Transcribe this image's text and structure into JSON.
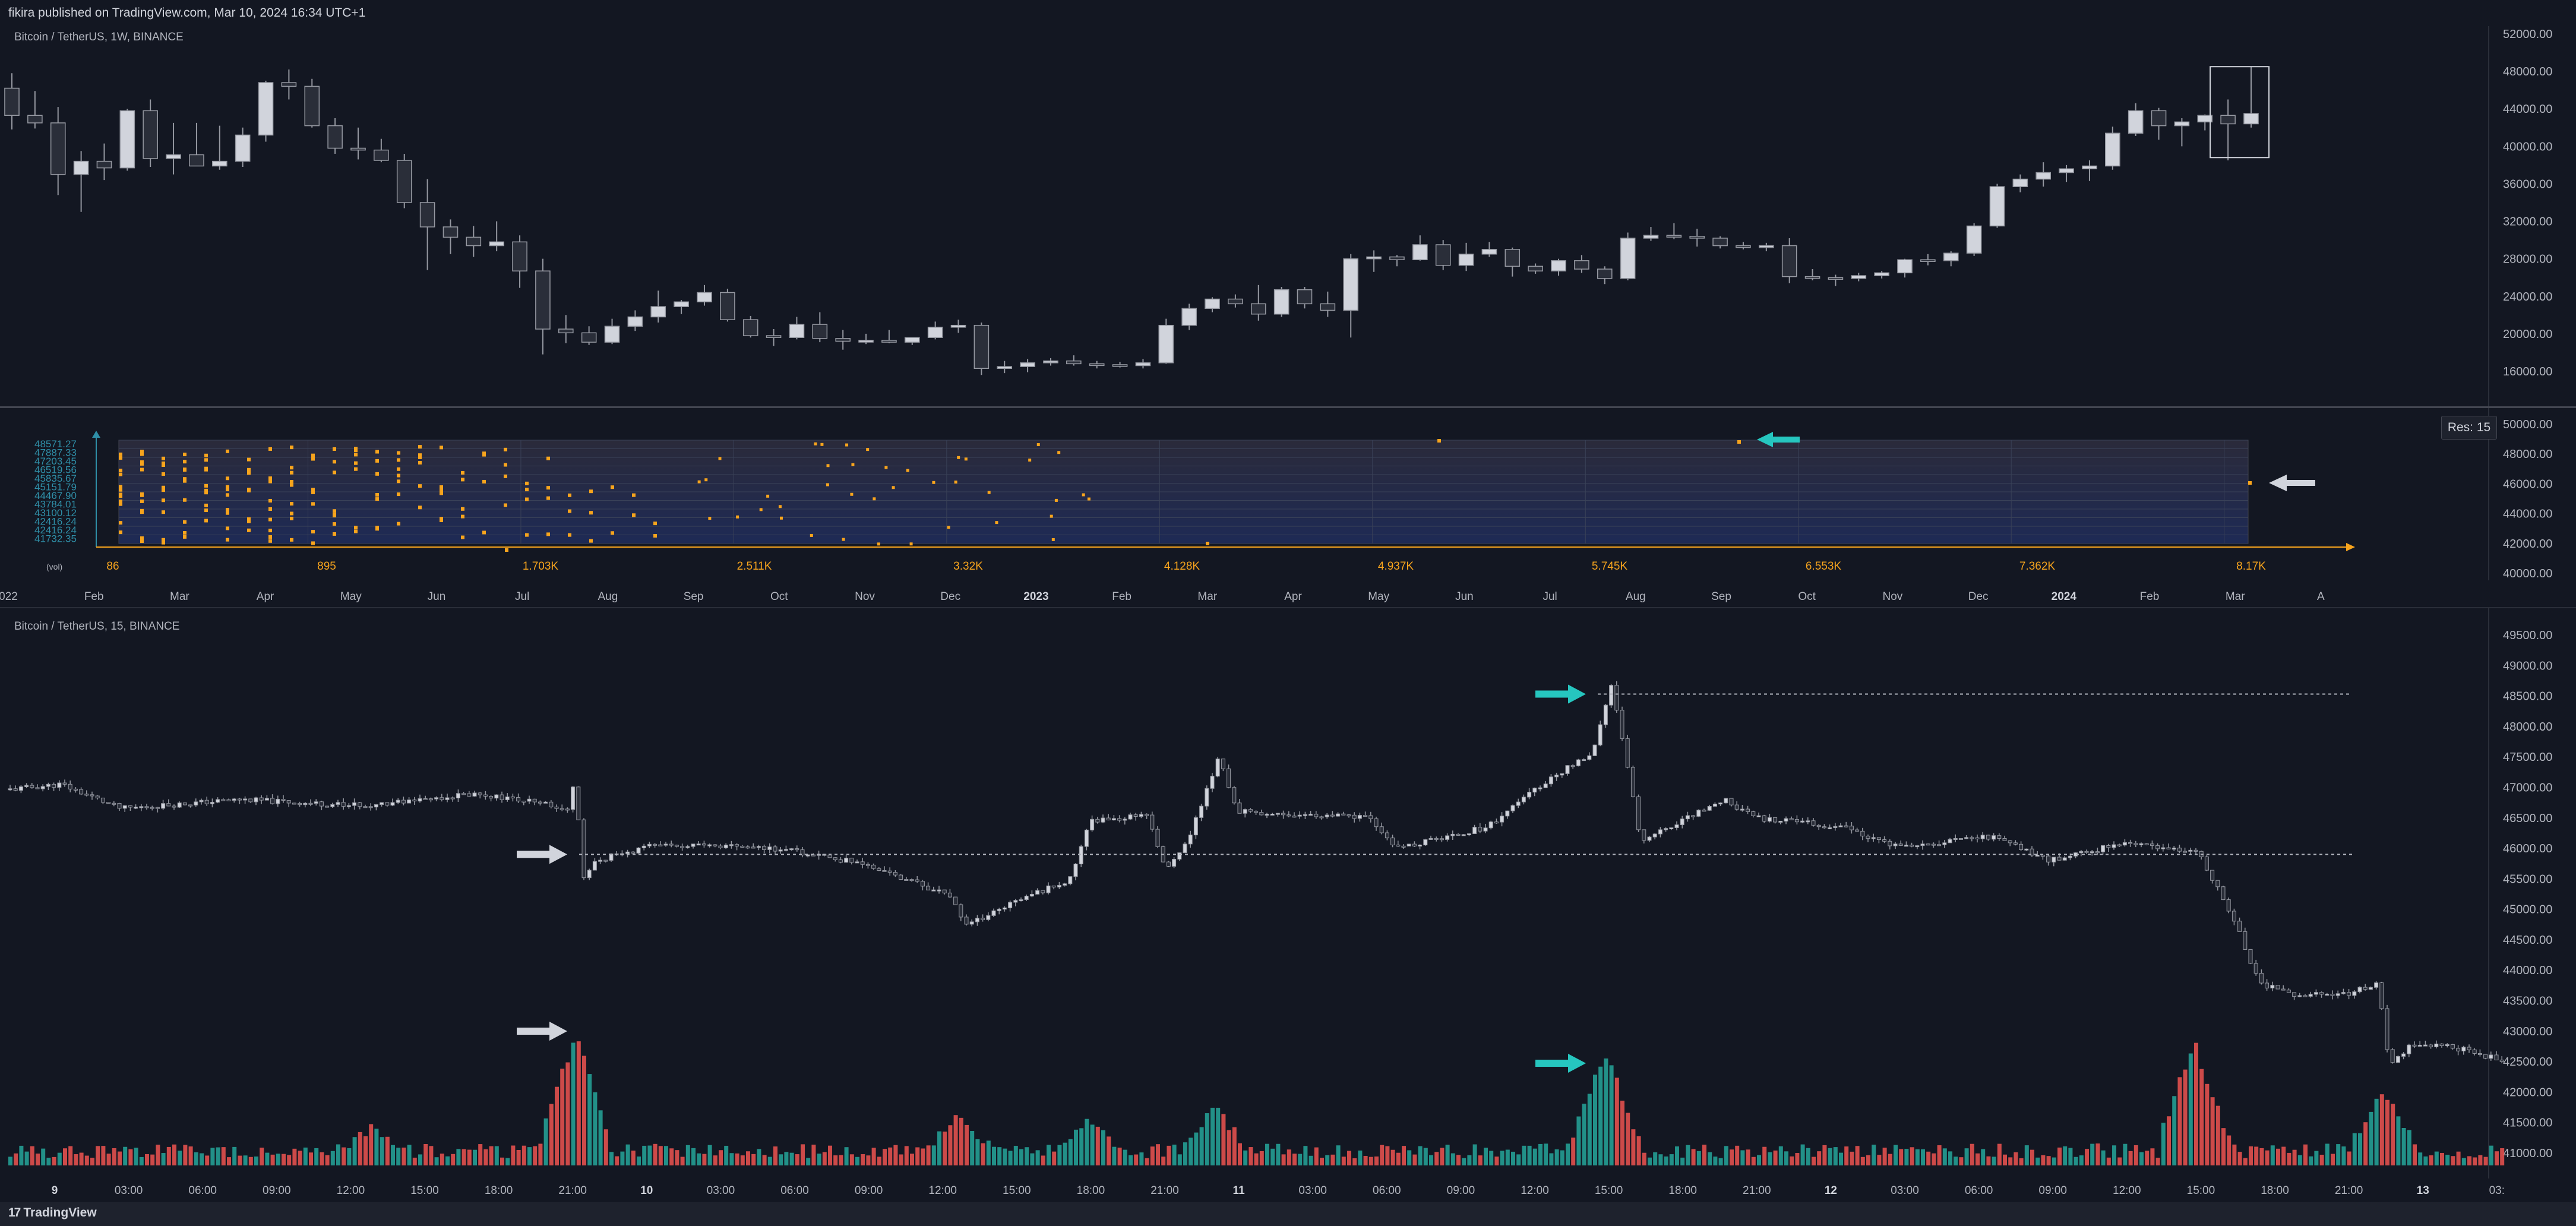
{
  "header": {
    "publish_text": "fikira published on TradingView.com, Mar 10, 2024 16:34 UTC+1"
  },
  "top_pane": {
    "title": "Bitcoin / TetherUS, 1W, BINANCE",
    "price_axis": [
      "52000.00",
      "48000.00",
      "44000.00",
      "40000.00",
      "36000.00",
      "32000.00",
      "28000.00",
      "24000.00",
      "20000.00",
      "16000.00"
    ],
    "candles": [
      [
        46200,
        47800,
        41800,
        43300
      ],
      [
        43300,
        45900,
        41900,
        42500
      ],
      [
        42500,
        44200,
        34800,
        37000
      ],
      [
        37000,
        39500,
        33000,
        38400
      ],
      [
        38400,
        40300,
        36400,
        37700
      ],
      [
        37700,
        44000,
        37400,
        43800
      ],
      [
        43800,
        45000,
        37800,
        38700
      ],
      [
        38700,
        42500,
        37000,
        39100
      ],
      [
        39100,
        42500,
        38100,
        37900
      ],
      [
        37900,
        42200,
        37500,
        38400
      ],
      [
        38400,
        42000,
        37800,
        41200
      ],
      [
        41200,
        47000,
        40500,
        46800
      ],
      [
        46800,
        48200,
        45000,
        46400
      ],
      [
        46400,
        47200,
        42000,
        42200
      ],
      [
        42200,
        43000,
        39200,
        39800
      ],
      [
        39800,
        42000,
        38600,
        39600
      ],
      [
        39600,
        40800,
        38300,
        38500
      ],
      [
        38500,
        39200,
        33400,
        34000
      ],
      [
        34000,
        36500,
        26800,
        31400
      ],
      [
        31400,
        32200,
        28500,
        30300
      ],
      [
        30300,
        31500,
        28200,
        29400
      ],
      [
        29400,
        32000,
        28800,
        29800
      ],
      [
        29800,
        30500,
        24900,
        26700
      ],
      [
        26700,
        28000,
        17800,
        20500
      ],
      [
        20500,
        22000,
        19000,
        20100
      ],
      [
        20100,
        20800,
        18800,
        19100
      ],
      [
        19100,
        21600,
        18900,
        20800
      ],
      [
        20800,
        22500,
        20300,
        21800
      ],
      [
        21800,
        24600,
        21200,
        22900
      ],
      [
        22900,
        23600,
        22100,
        23400
      ],
      [
        23400,
        25200,
        23000,
        24400
      ],
      [
        24400,
        24800,
        21300,
        21500
      ],
      [
        21500,
        21900,
        19600,
        19800
      ],
      [
        19800,
        20500,
        18700,
        19600
      ],
      [
        19600,
        21800,
        19400,
        21000
      ],
      [
        21000,
        22300,
        19100,
        19500
      ],
      [
        19500,
        20400,
        18300,
        19200
      ],
      [
        19200,
        20000,
        18900,
        19300
      ],
      [
        19300,
        20400,
        19000,
        19100
      ],
      [
        19100,
        19600,
        18800,
        19600
      ],
      [
        19600,
        21300,
        19400,
        20700
      ],
      [
        20700,
        21500,
        20100,
        20900
      ],
      [
        20900,
        21200,
        15600,
        16300
      ],
      [
        16300,
        17100,
        15800,
        16500
      ],
      [
        16500,
        17300,
        15900,
        16900
      ],
      [
        16900,
        17400,
        16600,
        17100
      ],
      [
        17100,
        17700,
        16600,
        16800
      ],
      [
        16800,
        17100,
        16300,
        16700
      ],
      [
        16700,
        17000,
        16400,
        16600
      ],
      [
        16600,
        17300,
        16300,
        16900
      ],
      [
        16900,
        21600,
        16800,
        20900
      ],
      [
        20900,
        23200,
        20400,
        22700
      ],
      [
        22700,
        23900,
        22300,
        23700
      ],
      [
        23700,
        24200,
        22800,
        23200
      ],
      [
        23200,
        25200,
        21400,
        22100
      ],
      [
        22100,
        25000,
        21800,
        24700
      ],
      [
        24700,
        25000,
        22700,
        23200
      ],
      [
        23200,
        24500,
        21800,
        22500
      ],
      [
        22500,
        28500,
        19600,
        28000
      ],
      [
        28000,
        28900,
        26600,
        28200
      ],
      [
        28200,
        28400,
        27200,
        27900
      ],
      [
        27900,
        30500,
        27800,
        29500
      ],
      [
        29500,
        30000,
        26800,
        27300
      ],
      [
        27300,
        29700,
        26700,
        28500
      ],
      [
        28500,
        29800,
        28200,
        29000
      ],
      [
        29000,
        29200,
        26100,
        27200
      ],
      [
        27200,
        27500,
        26400,
        26700
      ],
      [
        26700,
        28000,
        26200,
        27800
      ],
      [
        27800,
        28400,
        26500,
        26900
      ],
      [
        26900,
        27200,
        25300,
        25900
      ],
      [
        25900,
        30800,
        25700,
        30200
      ],
      [
        30200,
        31400,
        29900,
        30500
      ],
      [
        30500,
        31800,
        30100,
        30400
      ],
      [
        30400,
        31200,
        29300,
        30200
      ],
      [
        30200,
        30400,
        29100,
        29400
      ],
      [
        29400,
        29800,
        29000,
        29200
      ],
      [
        29200,
        29700,
        28800,
        29400
      ],
      [
        29400,
        30200,
        25400,
        26100
      ],
      [
        26100,
        26900,
        25700,
        26000
      ],
      [
        26000,
        26300,
        25100,
        25900
      ],
      [
        25900,
        26500,
        25600,
        26200
      ],
      [
        26200,
        26700,
        25900,
        26500
      ],
      [
        26500,
        28000,
        26000,
        27900
      ],
      [
        27900,
        28500,
        27300,
        27800
      ],
      [
        27800,
        28800,
        27200,
        28600
      ],
      [
        28600,
        31800,
        28300,
        31500
      ],
      [
        31500,
        36000,
        31300,
        35700
      ],
      [
        35700,
        37000,
        35100,
        36500
      ],
      [
        36500,
        38300,
        35700,
        37200
      ],
      [
        37200,
        38000,
        36200,
        37600
      ],
      [
        37600,
        38500,
        36300,
        37900
      ],
      [
        37900,
        42100,
        37500,
        41400
      ],
      [
        41400,
        44600,
        41100,
        43800
      ],
      [
        43800,
        44100,
        40700,
        42200
      ],
      [
        42200,
        43000,
        40000,
        42600
      ],
      [
        42600,
        43400,
        41700,
        43300
      ],
      [
        43300,
        45000,
        38500,
        42400
      ],
      [
        42400,
        48500,
        42000,
        43500
      ]
    ],
    "highlight_box_price": {
      "low": 38800,
      "high": 48500
    }
  },
  "middle_pane": {
    "price_labels": [
      "48571.27",
      "47887.33",
      "47203.45",
      "46519.56",
      "45835.67",
      "45151.79",
      "44467.90",
      "43784.01",
      "43100.12",
      "42416.24",
      "42416.24",
      "41732.35"
    ],
    "volume_label": "(vol)",
    "volume_ticks": [
      "86",
      "895",
      "1.703K",
      "2.511K",
      "3.32K",
      "4.128K",
      "4.937K",
      "5.745K",
      "6.553K",
      "7.362K",
      "8.17K"
    ],
    "price_axis": [
      "50000.00",
      "48000.00",
      "46000.00",
      "44000.00",
      "42000.00",
      "40000.00"
    ],
    "time_axis": [
      "022",
      "Feb",
      "Mar",
      "Apr",
      "May",
      "Jun",
      "Jul",
      "Aug",
      "Sep",
      "Oct",
      "Nov",
      "Dec",
      "2023",
      "Feb",
      "Mar",
      "Apr",
      "May",
      "Jun",
      "Jul",
      "Aug",
      "Sep",
      "Oct",
      "Nov",
      "Dec",
      "2024",
      "Feb",
      "Mar",
      "A"
    ],
    "res_label": "Res: 15",
    "arrow_colors": {
      "teal": "#26c6bf",
      "white": "#d1d4dc"
    }
  },
  "bottom_pane": {
    "title": "Bitcoin / TetherUS, 15, BINANCE",
    "price_axis": [
      "49500.00",
      "49000.00",
      "48500.00",
      "48000.00",
      "47500.00",
      "47000.00",
      "46500.00",
      "46000.00",
      "45500.00",
      "45000.00",
      "44500.00",
      "44000.00",
      "43500.00",
      "43000.00",
      "42500.00",
      "42000.00",
      "41500.00",
      "41000.00"
    ],
    "time_axis": [
      "9",
      "03:00",
      "06:00",
      "09:00",
      "12:00",
      "15:00",
      "18:00",
      "21:00",
      "10",
      "03:00",
      "06:00",
      "09:00",
      "12:00",
      "15:00",
      "18:00",
      "21:00",
      "11",
      "03:00",
      "06:00",
      "09:00",
      "12:00",
      "15:00",
      "18:00",
      "21:00",
      "12",
      "03:00",
      "06:00",
      "09:00",
      "12:00",
      "15:00",
      "18:00",
      "21:00",
      "13",
      "03:"
    ],
    "levels": {
      "upper": 48530,
      "lower": 45900
    },
    "colors": {
      "up_volume": "#26a69a",
      "down_volume": "#ef5350",
      "candle": "#d1d4dc"
    }
  },
  "footer": {
    "brand": "TradingView",
    "logo_mark": "17"
  }
}
